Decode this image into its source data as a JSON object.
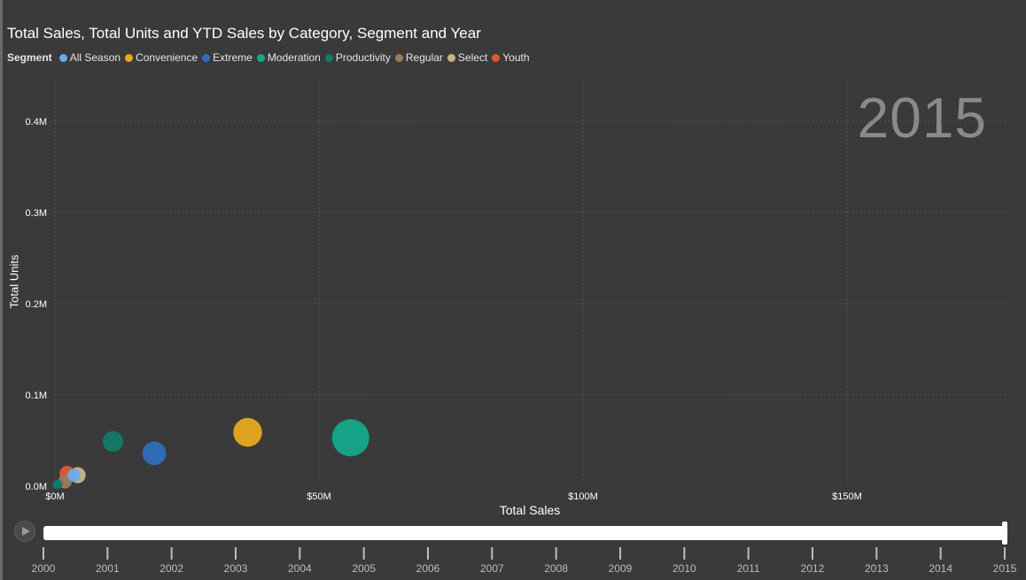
{
  "title": "Total Sales, Total Units and YTD Sales by Category, Segment and Year",
  "legend": {
    "title": "Segment",
    "items": [
      {
        "label": "All Season",
        "color": "#6aaae8"
      },
      {
        "label": "Convenience",
        "color": "#e8a81e"
      },
      {
        "label": "Extreme",
        "color": "#2f6fbd"
      },
      {
        "label": "Moderation",
        "color": "#13a88b"
      },
      {
        "label": "Productivity",
        "color": "#127a6a"
      },
      {
        "label": "Regular",
        "color": "#9a7c5f"
      },
      {
        "label": "Select",
        "color": "#c8b48a"
      },
      {
        "label": "Youth",
        "color": "#e05a34"
      }
    ]
  },
  "current_year": "2015",
  "chart_data": {
    "type": "scatter",
    "title": "Total Sales, Total Units and YTD Sales by Category, Segment and Year",
    "xlabel": "Total Sales",
    "ylabel": "Total Units",
    "xlim": [
      0,
      180000000
    ],
    "ylim": [
      0,
      0.4
    ],
    "x_ticks": [
      {
        "value": 0,
        "label": "$0M"
      },
      {
        "value": 50000000,
        "label": "$50M"
      },
      {
        "value": 100000000,
        "label": "$100M"
      },
      {
        "value": 150000000,
        "label": "$150M"
      }
    ],
    "y_ticks": [
      {
        "value": 0,
        "label": "0.0M"
      },
      {
        "value": 0.1,
        "label": "0.1M"
      },
      {
        "value": 0.2,
        "label": "0.2M"
      },
      {
        "value": 0.3,
        "label": "0.3M"
      },
      {
        "value": 0.4,
        "label": "0.4M"
      }
    ],
    "size_measure": "YTD Sales",
    "grid": true,
    "legend_position": "top-left",
    "points": [
      {
        "segment": "Moderation",
        "x": 56000000,
        "y": 0.053,
        "size": 1.0
      },
      {
        "segment": "Convenience",
        "x": 36500000,
        "y": 0.059,
        "size": 0.72
      },
      {
        "segment": "Extreme",
        "x": 18800000,
        "y": 0.036,
        "size": 0.55
      },
      {
        "segment": "Productivity",
        "x": 11000000,
        "y": 0.049,
        "size": 0.45
      },
      {
        "segment": "Select",
        "x": 4300000,
        "y": 0.012,
        "size": 0.3
      },
      {
        "segment": "Youth",
        "x": 2300000,
        "y": 0.014,
        "size": 0.26
      },
      {
        "segment": "Regular",
        "x": 1900000,
        "y": 0.005,
        "size": 0.22
      },
      {
        "segment": "All Season",
        "x": 3600000,
        "y": 0.012,
        "size": 0.2
      },
      {
        "segment": "Productivity",
        "x": 500000,
        "y": 0.002,
        "size": 0.08
      }
    ]
  },
  "timeline": {
    "years": [
      "2000",
      "2001",
      "2002",
      "2003",
      "2004",
      "2005",
      "2006",
      "2007",
      "2008",
      "2009",
      "2010",
      "2011",
      "2012",
      "2013",
      "2014",
      "2015"
    ],
    "selected": "2015"
  }
}
